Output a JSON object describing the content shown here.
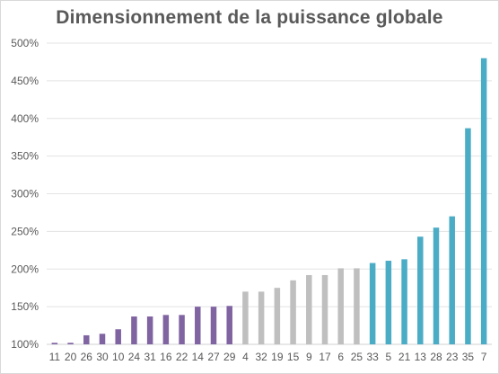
{
  "chart_data": {
    "type": "bar",
    "title": "Dimensionnement  de la puissance  globale",
    "xlabel": "",
    "ylabel": "",
    "ylim": [
      1.0,
      5.0
    ],
    "yticks": [
      "100%",
      "150%",
      "200%",
      "250%",
      "300%",
      "350%",
      "400%",
      "450%",
      "500%"
    ],
    "grid": true,
    "legend": "none",
    "categories": [
      "11",
      "20",
      "26",
      "30",
      "10",
      "24",
      "31",
      "16",
      "22",
      "14",
      "27",
      "29",
      "4",
      "32",
      "19",
      "15",
      "9",
      "17",
      "6",
      "25",
      "33",
      "5",
      "21",
      "13",
      "28",
      "23",
      "35",
      "7"
    ],
    "values": [
      1.02,
      1.02,
      1.12,
      1.14,
      1.2,
      1.37,
      1.37,
      1.39,
      1.39,
      1.5,
      1.5,
      1.51,
      1.7,
      1.7,
      1.75,
      1.85,
      1.92,
      1.92,
      2.01,
      2.01,
      2.08,
      2.11,
      2.13,
      2.43,
      2.55,
      2.7,
      3.87,
      4.8
    ],
    "groups": [
      {
        "color": "#8064a2",
        "count": 12
      },
      {
        "color": "#bfbfbf",
        "count": 8
      },
      {
        "color": "#4bacc6",
        "count": 8
      }
    ]
  }
}
